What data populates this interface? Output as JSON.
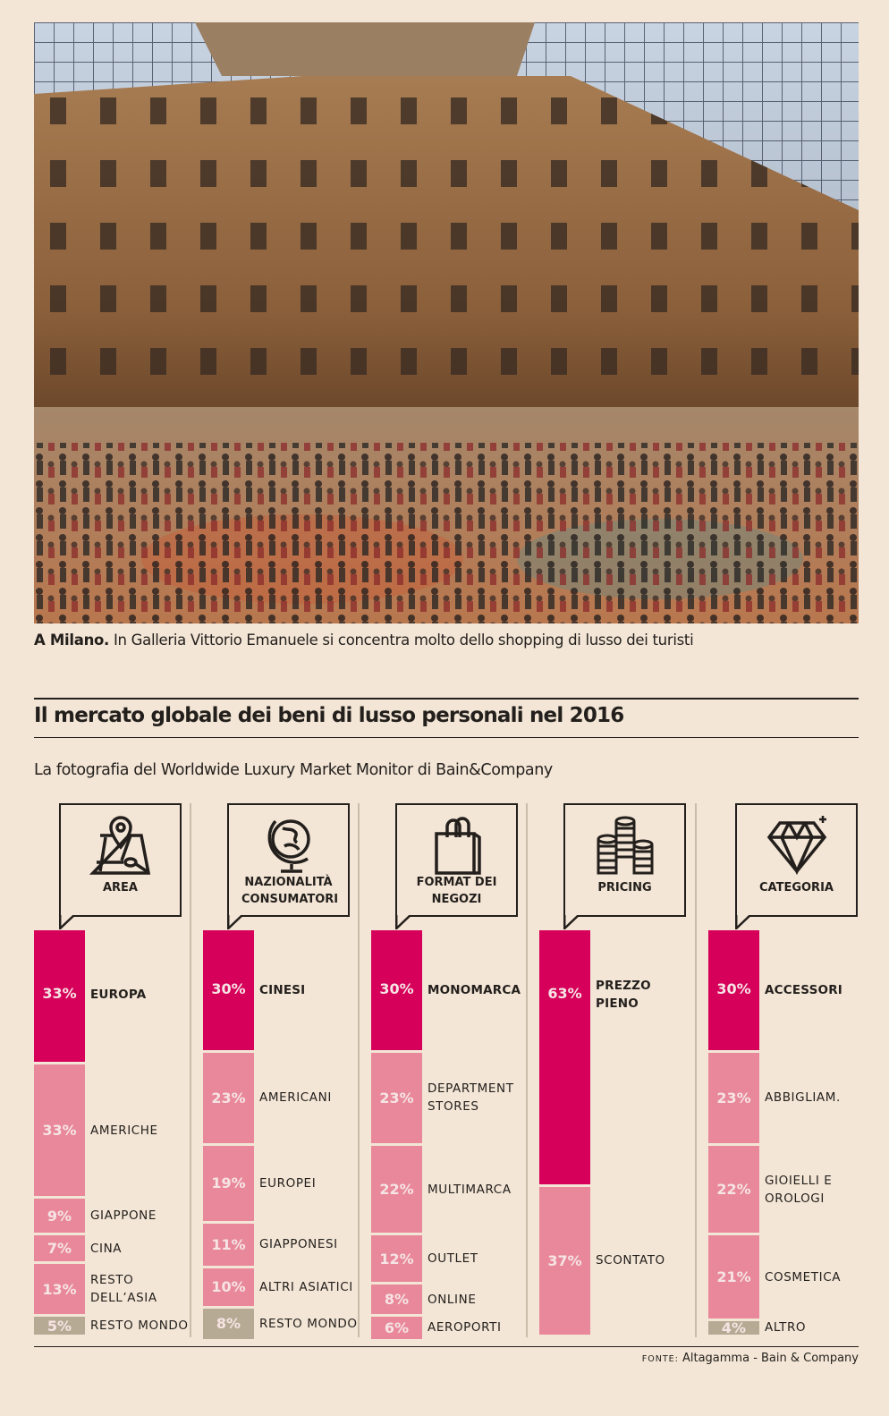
{
  "caption": {
    "bold": "A Milano.",
    "text": " In Galleria Vittorio Emanuele si concentra molto dello shopping di lusso dei turisti"
  },
  "title": "Il mercato globale dei beni di lusso personali nel 2016",
  "subtitle": "La fotografia del Worldwide Luxury Market Monitor di Bain&Company",
  "source": {
    "label": "FONTE:",
    "text": " Altagamma - Bain & Company"
  },
  "colors": {
    "background": "#f3e6d6",
    "primary": "#d6005a",
    "secondary": "#e8889a",
    "other": "#b7aa94"
  },
  "chart_data": {
    "type": "bar",
    "stacked": true,
    "title": "Il mercato globale dei beni di lusso personali nel 2016",
    "panels": [
      {
        "name": "AREA",
        "icon": "map-pin-icon",
        "segments": [
          {
            "label": "EUROPA",
            "value": 33,
            "color": "primary"
          },
          {
            "label": "AMERICHE",
            "value": 33,
            "color": "secondary"
          },
          {
            "label": "GIAPPONE",
            "value": 9,
            "color": "secondary"
          },
          {
            "label": "CINA",
            "value": 7,
            "color": "secondary"
          },
          {
            "label": "RESTO DELL’ASIA",
            "value": 13,
            "color": "secondary"
          },
          {
            "label": "RESTO MONDO",
            "value": 5,
            "color": "other"
          }
        ]
      },
      {
        "name": "NAZIONALITÀ CONSUMATORI",
        "icon": "globe-icon",
        "segments": [
          {
            "label": "CINESI",
            "value": 30,
            "color": "primary"
          },
          {
            "label": "AMERICANI",
            "value": 23,
            "color": "secondary"
          },
          {
            "label": "EUROPEI",
            "value": 19,
            "color": "secondary"
          },
          {
            "label": "GIAPPONESI",
            "value": 11,
            "color": "secondary"
          },
          {
            "label": "ALTRI ASIATICI",
            "value": 10,
            "color": "secondary"
          },
          {
            "label": "RESTO MONDO",
            "value": 8,
            "color": "other"
          }
        ]
      },
      {
        "name": "FORMAT DEI NEGOZI",
        "icon": "shopping-bag-icon",
        "segments": [
          {
            "label": "MONOMARCA",
            "value": 30,
            "color": "primary"
          },
          {
            "label": "DEPARTMENT STORES",
            "value": 23,
            "color": "secondary"
          },
          {
            "label": "MULTIMARCA",
            "value": 22,
            "color": "secondary"
          },
          {
            "label": "OUTLET",
            "value": 12,
            "color": "secondary"
          },
          {
            "label": "ONLINE",
            "value": 8,
            "color": "secondary"
          },
          {
            "label": "AEROPORTI",
            "value": 6,
            "color": "secondary"
          }
        ]
      },
      {
        "name": "PRICING",
        "icon": "coins-icon",
        "segments": [
          {
            "label": "PREZZO PIENO",
            "value": 63,
            "color": "primary"
          },
          {
            "label": "SCONTATO",
            "value": 37,
            "color": "secondary"
          }
        ]
      },
      {
        "name": "CATEGORIA",
        "icon": "diamond-icon",
        "segments": [
          {
            "label": "ACCESSORI",
            "value": 30,
            "color": "primary"
          },
          {
            "label": "ABBIGLIAM.",
            "value": 23,
            "color": "secondary"
          },
          {
            "label": "GIOIELLI E OROLOGI",
            "value": 22,
            "color": "secondary"
          },
          {
            "label": "COSMETICA",
            "value": 21,
            "color": "secondary"
          },
          {
            "label": "ALTRO",
            "value": 4,
            "color": "other"
          }
        ]
      }
    ]
  }
}
